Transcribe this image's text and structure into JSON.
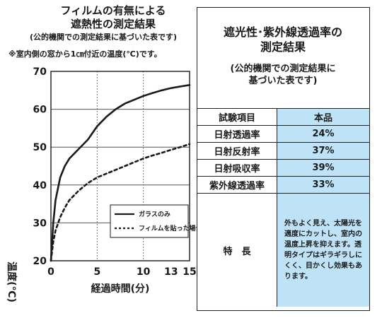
{
  "left": {
    "title_line1": "フィルムの有無による",
    "title_line2": "遮熱性の測定結果",
    "subtitle": "(公的機関での測定結果に基づいた表です)",
    "note": "※室内側の窓から1㎝付近の温度(℃)です。"
  },
  "chart_data": {
    "type": "line",
    "xlabel": "経過時間(分)",
    "ylabel": "温度(℃)",
    "xlim": [
      0,
      15
    ],
    "ylim": [
      20,
      70
    ],
    "x_ticks": [
      0,
      5,
      10,
      13,
      15
    ],
    "y_ticks": [
      20,
      30,
      40,
      50,
      60,
      70
    ],
    "x_tick_labels": [
      "0",
      "5",
      "10",
      "13",
      "15"
    ],
    "y_tick_labels": [
      "20",
      "30",
      "40",
      "50",
      "60",
      "70"
    ],
    "vertical_gridlines": [
      5,
      10
    ],
    "legend_position": "lower-right",
    "series": [
      {
        "name": "ガラスのみ",
        "style": "solid",
        "color": "#1a1a1a",
        "points": [
          [
            0,
            20
          ],
          [
            0.25,
            30
          ],
          [
            0.5,
            36
          ],
          [
            1,
            42
          ],
          [
            1.5,
            45
          ],
          [
            2,
            47
          ],
          [
            3,
            49.5
          ],
          [
            4,
            52
          ],
          [
            5,
            55.5
          ],
          [
            6,
            58
          ],
          [
            7,
            60
          ],
          [
            8,
            61.5
          ],
          [
            9,
            62.5
          ],
          [
            10,
            63.5
          ],
          [
            11,
            64.3
          ],
          [
            12,
            65
          ],
          [
            13,
            65.6
          ],
          [
            14,
            66
          ],
          [
            15,
            66.4
          ]
        ]
      },
      {
        "name": "フィルムを貼った場合",
        "style": "dashed",
        "color": "#1a1a1a",
        "points": [
          [
            0,
            20
          ],
          [
            0.25,
            25
          ],
          [
            0.5,
            28
          ],
          [
            1,
            31.5
          ],
          [
            1.5,
            34
          ],
          [
            2,
            36
          ],
          [
            3,
            38.5
          ],
          [
            4,
            40.5
          ],
          [
            5,
            42
          ],
          [
            6,
            43
          ],
          [
            7,
            44
          ],
          [
            8,
            45
          ],
          [
            9,
            46
          ],
          [
            10,
            47
          ],
          [
            11,
            47.8
          ],
          [
            12,
            48.5
          ],
          [
            13,
            49.3
          ],
          [
            14,
            50
          ],
          [
            15,
            50.8
          ]
        ]
      }
    ]
  },
  "right": {
    "title_line1": "遮光性･紫外線透過率の",
    "title_line2": "測定結果",
    "subtitle_line1": "(公的機関での測定結果に",
    "subtitle_line2": "基づいた表です)",
    "header": {
      "item": "試験項目",
      "value": "本品"
    },
    "rows": [
      {
        "item": "日射透過率",
        "value": "24%"
      },
      {
        "item": "日射反射率",
        "value": "37%"
      },
      {
        "item": "日射吸収率",
        "value": "39%"
      },
      {
        "item": "紫外線透過率",
        "value": "33%"
      }
    ],
    "feature": {
      "item": "特　長",
      "text": "外もよく見え、太陽光を適度にカットし、室内の温度上昇を抑えます。透明タイプはギラギラしにくく、目かくし効果もあります。"
    },
    "highlight_color": "#bfe3f6"
  }
}
